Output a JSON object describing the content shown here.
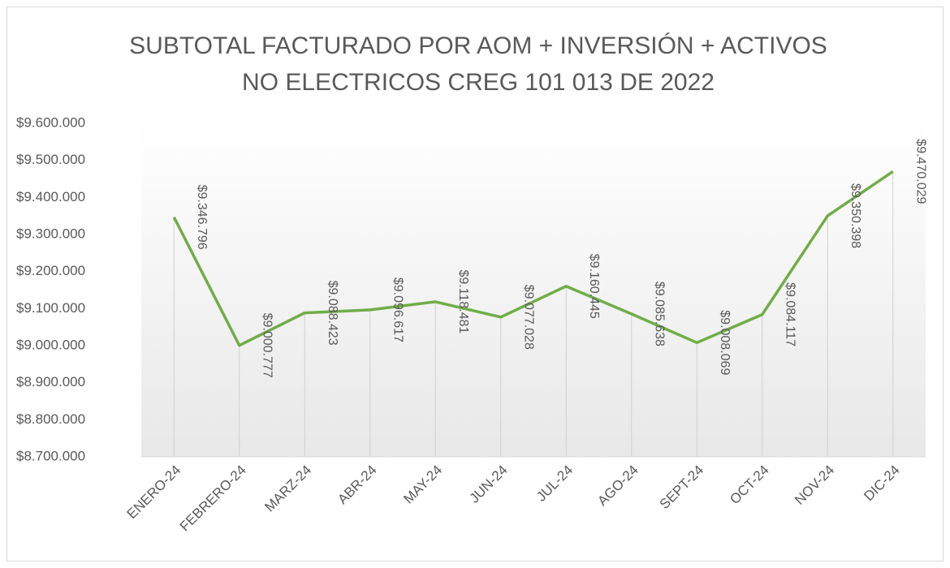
{
  "chart_data": {
    "type": "line",
    "title": [
      "SUBTOTAL  FACTURADO POR AOM + INVERSIÓN + ACTIVOS",
      "NO ELECTRICOS CREG 101 013 DE 2022"
    ],
    "categories": [
      "ENERO-24",
      "FEBRERO-24",
      "MARZ-24",
      "ABR-24",
      "MAY-24",
      "JUN-24",
      "JUL-24",
      "AGO-24",
      "SEPT-24",
      "OCT-24",
      "NOV-24",
      "DIC-24"
    ],
    "values": [
      9346796,
      9000777,
      9088423,
      9096617,
      9118481,
      9077028,
      9160445,
      9085638,
      9008069,
      9084117,
      9350398,
      9470029
    ],
    "value_labels": [
      "$9.346.796",
      "$9.000.777",
      "$9.088.423",
      "$9.096.617",
      "$9.118.481",
      "$9.077.028",
      "$9.160.445",
      "$9.085.638",
      "$9.008.069",
      "$9.084.117",
      "$9.350.398",
      "$9.470.029"
    ],
    "color": "#70ad47",
    "drop_lines": true,
    "ylim": [
      8700000,
      9600000
    ],
    "yticks": [
      {
        "value": 8700000,
        "label": "$8.700.000"
      },
      {
        "value": 8800000,
        "label": "$8.800.000"
      },
      {
        "value": 8900000,
        "label": "$8.900.000"
      },
      {
        "value": 9000000,
        "label": "$9.000.000"
      },
      {
        "value": 9100000,
        "label": "$9.100.000"
      },
      {
        "value": 9200000,
        "label": "$9.200.000"
      },
      {
        "value": 9300000,
        "label": "$9.300.000"
      },
      {
        "value": 9400000,
        "label": "$9.400.000"
      },
      {
        "value": 9500000,
        "label": "$9.500.000"
      },
      {
        "value": 9600000,
        "label": "$9.600.000"
      }
    ]
  }
}
